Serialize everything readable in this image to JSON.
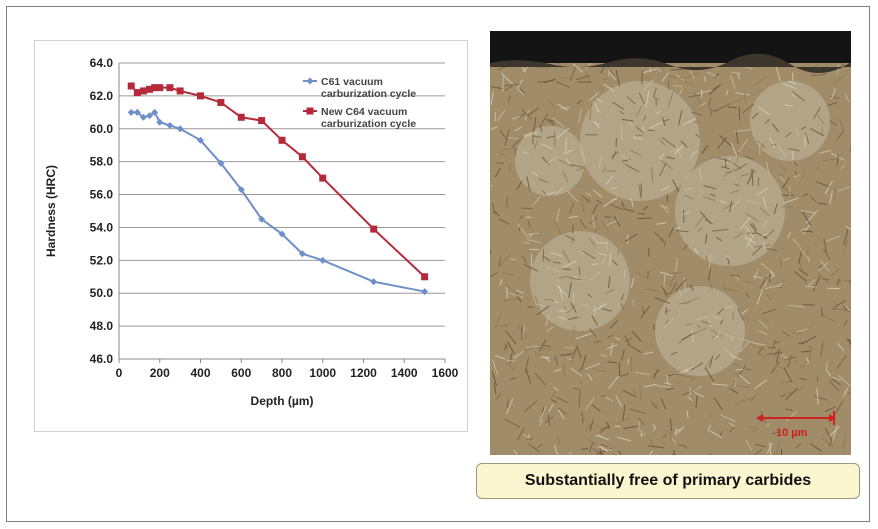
{
  "chart_data": {
    "type": "line",
    "title": "",
    "xlabel": "Depth (µm)",
    "ylabel": "Hardness (HRC)",
    "xlim": [
      0,
      1600
    ],
    "ylim": [
      46,
      64
    ],
    "x_ticks": [
      0,
      200,
      400,
      600,
      800,
      1000,
      1200,
      1400,
      1600
    ],
    "y_ticks": [
      46,
      48,
      50,
      52,
      54,
      56,
      58,
      60,
      62,
      64
    ],
    "x_tick_labels": [
      "0",
      "200",
      "400",
      "600",
      "800",
      "1000",
      "1200",
      "1400",
      "1600"
    ],
    "y_tick_labels": [
      "46.0",
      "48.0",
      "50.0",
      "52.0",
      "54.0",
      "56.0",
      "58.0",
      "60.0",
      "62.0",
      "64.0"
    ],
    "grid": "horizontal",
    "legend_position": "top-right",
    "series": [
      {
        "name": "C61 vacuum carburization cycle",
        "legend_lines": [
          "C61 vacuum",
          "carburization cycle"
        ],
        "color": "#6f8fc8",
        "marker": "diamond",
        "points": [
          [
            60,
            61.0
          ],
          [
            90,
            61.0
          ],
          [
            120,
            60.7
          ],
          [
            150,
            60.8
          ],
          [
            175,
            61.0
          ],
          [
            200,
            60.4
          ],
          [
            250,
            60.2
          ],
          [
            300,
            60.0
          ],
          [
            400,
            59.3
          ],
          [
            500,
            57.9
          ],
          [
            600,
            56.3
          ],
          [
            700,
            54.5
          ],
          [
            800,
            53.6
          ],
          [
            900,
            52.4
          ],
          [
            1000,
            52.0
          ],
          [
            1250,
            50.7
          ],
          [
            1500,
            50.1
          ]
        ]
      },
      {
        "name": "New C64 vacuum carburization cycle",
        "legend_lines": [
          "New C64 vacuum",
          "carburization cycle"
        ],
        "color": "#b52a3a",
        "marker": "square",
        "points": [
          [
            60,
            62.6
          ],
          [
            90,
            62.2
          ],
          [
            120,
            62.3
          ],
          [
            150,
            62.4
          ],
          [
            175,
            62.5
          ],
          [
            200,
            62.5
          ],
          [
            250,
            62.5
          ],
          [
            300,
            62.3
          ],
          [
            400,
            62.0
          ],
          [
            500,
            61.6
          ],
          [
            600,
            60.7
          ],
          [
            700,
            60.5
          ],
          [
            800,
            59.3
          ],
          [
            900,
            58.3
          ],
          [
            1000,
            57.0
          ],
          [
            1250,
            53.9
          ],
          [
            1500,
            51.0
          ]
        ]
      }
    ]
  },
  "micrograph": {
    "scale_bar_label": "10 µm",
    "scale_bar_color": "#d02020"
  },
  "caption": "Substantially free of primary carbides"
}
